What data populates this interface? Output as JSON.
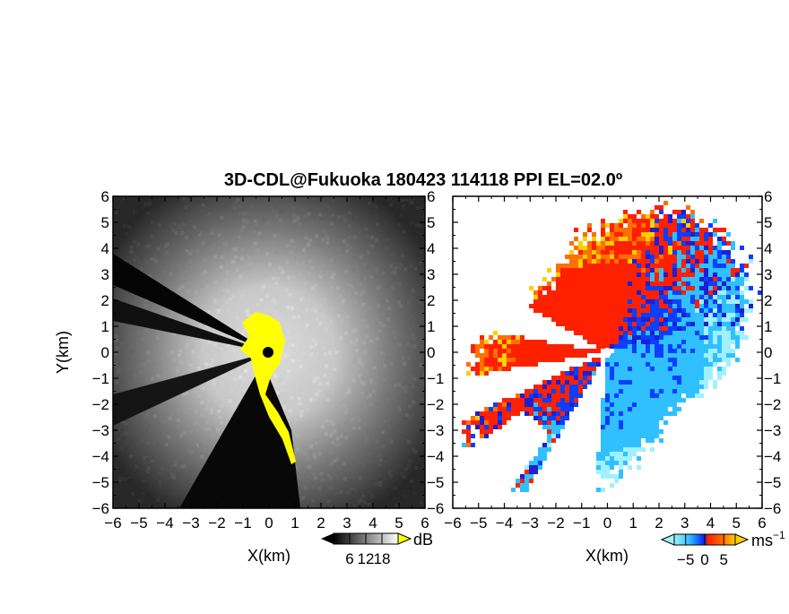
{
  "title": "3D-CDL@Fukuoka 180423 114118 PPI EL=02.0º",
  "chart_data": [
    {
      "type": "heatmap",
      "panel": "left",
      "quantity_unit": "dB",
      "xlabel": "X(km)",
      "ylabel": "Y(km)",
      "xlim": [
        -6,
        6
      ],
      "ylim": [
        -6,
        6
      ],
      "xticks": [
        "−6",
        "−5",
        "−4",
        "−3",
        "−2",
        "−1",
        "0",
        "1",
        "2",
        "3",
        "4",
        "5",
        "6"
      ],
      "yticks": [
        "6",
        "5",
        "4",
        "3",
        "2",
        "1",
        "0",
        "−1",
        "−2",
        "−3",
        "−4",
        "−5",
        "−6"
      ],
      "colorbar": {
        "unit": "dB",
        "range": [
          0,
          24
        ],
        "tick_values": [
          6,
          12,
          18
        ],
        "tick_labels": [
          "6",
          "12",
          "18"
        ],
        "colors": [
          "#000000",
          "#ffffff"
        ],
        "extension_colors": [
          "#000000",
          "#ffff00"
        ]
      },
      "overlay": {
        "color": "#ffff00",
        "region": "near-radar"
      },
      "radar_center_km": [
        0,
        0
      ],
      "grid": false
    },
    {
      "type": "heatmap",
      "panel": "right",
      "quantity_unit": "ms−1",
      "xlabel": "X(km)",
      "ylabel": "",
      "xlim": [
        -6,
        6
      ],
      "ylim": [
        -6,
        6
      ],
      "xticks": [
        "−6",
        "−5",
        "−4",
        "−3",
        "−2",
        "−1",
        "0",
        "1",
        "2",
        "3",
        "4",
        "5",
        "6"
      ],
      "yticks": [
        "6",
        "5",
        "4",
        "3",
        "2",
        "1",
        "0",
        "−1",
        "−2",
        "−3",
        "−4",
        "−5",
        "−6"
      ],
      "colorbar": {
        "unit": "ms",
        "unit_exponent": "−1",
        "range": [
          -8,
          8
        ],
        "tick_values": [
          -5,
          0,
          5
        ],
        "tick_labels": [
          "−5",
          "0",
          "5"
        ],
        "colors": [
          "#a0f0ff",
          "#30c0ff",
          "#0a3fff",
          "#1e1ed2",
          "#ff2000",
          "#ff7000",
          "#ffd000"
        ],
        "extension_colors": [
          "#a0f0ff",
          "#ffd000"
        ]
      },
      "grid": false
    }
  ]
}
